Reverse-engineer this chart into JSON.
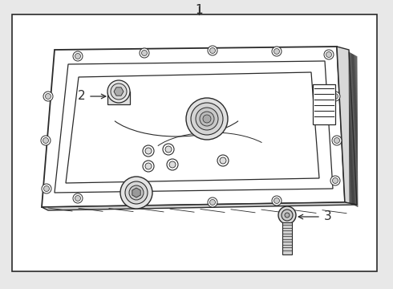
{
  "bg_color": "#e8e8e8",
  "box_bg": "#e8e8e8",
  "line_color": "#2a2a2a",
  "label1": "1",
  "label2": "2",
  "label3": "3"
}
